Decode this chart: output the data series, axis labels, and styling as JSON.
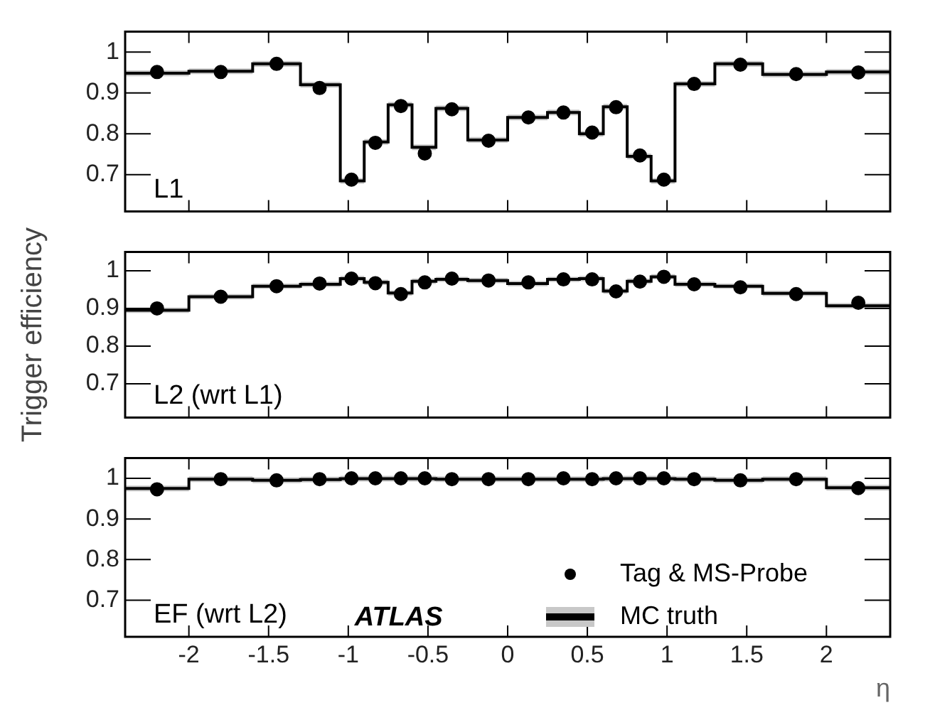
{
  "chart_data": [
    {
      "type": "step",
      "annotations": [
        "L1"
      ],
      "xlim": [
        -2.4,
        2.4
      ],
      "xticks": [
        -2,
        -1.5,
        -1,
        -0.5,
        0,
        0.5,
        1,
        1.5,
        2
      ],
      "ylim": [
        0.61,
        1.05
      ],
      "yticks": [
        0.7,
        0.8,
        0.9,
        1
      ],
      "tick_labels": "y",
      "grid": false,
      "legend": false,
      "series": [
        {
          "type": "scatter",
          "color": "#000000",
          "marker": "circle",
          "x": [
            -2.2,
            -1.8,
            -1.45,
            -1.18,
            -0.98,
            -0.83,
            -0.67,
            -0.52,
            -0.35,
            -0.12,
            0.13,
            0.35,
            0.53,
            0.68,
            0.83,
            0.98,
            1.17,
            1.46,
            1.81,
            2.2
          ],
          "values": [
            0.951,
            0.951,
            0.971,
            0.912,
            0.688,
            0.778,
            0.868,
            0.752,
            0.86,
            0.783,
            0.84,
            0.852,
            0.803,
            0.865,
            0.747,
            0.688,
            0.922,
            0.969,
            0.946,
            0.95
          ]
        },
        {
          "type": "step",
          "color": "#000000",
          "x": [
            -2.4,
            -2.0,
            -1.6,
            -1.3,
            -1.05,
            -0.9,
            -0.75,
            -0.6,
            -0.45,
            -0.25,
            0,
            0.25,
            0.45,
            0.6,
            0.75,
            0.9,
            1.05,
            1.3,
            1.6,
            2.0,
            2.4
          ],
          "values": [
            0.948,
            0.953,
            0.971,
            0.92,
            0.685,
            0.78,
            0.871,
            0.767,
            0.862,
            0.785,
            0.84,
            0.852,
            0.8,
            0.866,
            0.745,
            0.685,
            0.922,
            0.971,
            0.945,
            0.951,
            0.951
          ],
          "lower": [
            0.941,
            0.946,
            0.964,
            0.913,
            0.678,
            0.773,
            0.864,
            0.76,
            0.855,
            0.778,
            0.833,
            0.845,
            0.793,
            0.859,
            0.738,
            0.678,
            0.915,
            0.964,
            0.938,
            0.944,
            0.944
          ],
          "upper": [
            0.955,
            0.96,
            0.978,
            0.927,
            0.692,
            0.787,
            0.878,
            0.774,
            0.869,
            0.792,
            0.847,
            0.859,
            0.807,
            0.873,
            0.752,
            0.692,
            0.929,
            0.978,
            0.952,
            0.958,
            0.958
          ]
        }
      ]
    },
    {
      "type": "step",
      "ylabel": "Trigger efficiency",
      "annotations": [
        "L2 (wrt L1)"
      ],
      "xlim": [
        -2.4,
        2.4
      ],
      "xticks": [
        -2,
        -1.5,
        -1,
        -0.5,
        0,
        0.5,
        1,
        1.5,
        2
      ],
      "ylim": [
        0.61,
        1.05
      ],
      "yticks": [
        0.7,
        0.8,
        0.9,
        1
      ],
      "tick_labels": "y",
      "grid": false,
      "legend": false,
      "series": [
        {
          "type": "scatter",
          "color": "#000000",
          "marker": "circle",
          "x": [
            -2.2,
            -1.8,
            -1.45,
            -1.18,
            -0.98,
            -0.83,
            -0.67,
            -0.52,
            -0.35,
            -0.12,
            0.13,
            0.35,
            0.53,
            0.68,
            0.83,
            0.98,
            1.17,
            1.46,
            1.81,
            2.2
          ],
          "values": [
            0.9,
            0.931,
            0.959,
            0.966,
            0.979,
            0.967,
            0.938,
            0.969,
            0.979,
            0.974,
            0.969,
            0.977,
            0.977,
            0.945,
            0.971,
            0.984,
            0.964,
            0.956,
            0.938,
            0.915
          ]
        },
        {
          "type": "step",
          "color": "#000000",
          "x": [
            -2.4,
            -2.0,
            -1.6,
            -1.3,
            -1.05,
            -0.9,
            -0.75,
            -0.6,
            -0.45,
            -0.25,
            0,
            0.25,
            0.45,
            0.6,
            0.75,
            0.9,
            1.05,
            1.3,
            1.6,
            2.0,
            2.4
          ],
          "values": [
            0.895,
            0.931,
            0.959,
            0.964,
            0.979,
            0.969,
            0.941,
            0.972,
            0.977,
            0.974,
            0.966,
            0.977,
            0.979,
            0.946,
            0.972,
            0.984,
            0.964,
            0.959,
            0.94,
            0.907,
            0.907
          ],
          "lower": [
            0.888,
            0.924,
            0.952,
            0.957,
            0.972,
            0.962,
            0.934,
            0.965,
            0.97,
            0.967,
            0.959,
            0.97,
            0.972,
            0.939,
            0.965,
            0.977,
            0.957,
            0.952,
            0.933,
            0.9,
            0.9
          ],
          "upper": [
            0.902,
            0.938,
            0.966,
            0.971,
            0.986,
            0.976,
            0.948,
            0.979,
            0.984,
            0.981,
            0.973,
            0.984,
            0.986,
            0.953,
            0.979,
            0.991,
            0.971,
            0.966,
            0.947,
            0.914,
            0.914
          ]
        }
      ]
    },
    {
      "type": "step",
      "xlabel": "η",
      "annotations": [
        "EF (wrt L2)",
        "ATLAS"
      ],
      "xlim": [
        -2.4,
        2.4
      ],
      "xticks": [
        -2,
        -1.5,
        -1,
        -0.5,
        0,
        0.5,
        1,
        1.5,
        2
      ],
      "ylim": [
        0.61,
        1.05
      ],
      "yticks": [
        0.7,
        0.8,
        0.9,
        1
      ],
      "grid": false,
      "legend": "bottom right",
      "series": [
        {
          "type": "scatter",
          "name": "Tag & MS-Probe",
          "color": "#000000",
          "marker": "circle",
          "x": [
            -2.2,
            -1.8,
            -1.45,
            -1.18,
            -0.98,
            -0.83,
            -0.67,
            -0.52,
            -0.35,
            -0.12,
            0.13,
            0.35,
            0.53,
            0.68,
            0.83,
            0.98,
            1.17,
            1.46,
            1.81,
            2.2
          ],
          "values": [
            0.973,
            0.998,
            0.995,
            0.998,
            1.0,
            1.0,
            1.0,
            1.0,
            0.998,
            0.998,
            0.998,
            1.0,
            0.998,
            1.0,
            1.0,
            1.0,
            0.998,
            0.995,
            0.998,
            0.976
          ]
        },
        {
          "type": "step",
          "name": "MC truth",
          "color": "#000000",
          "x": [
            -2.4,
            -2.0,
            -1.6,
            -1.3,
            -1.05,
            -0.9,
            -0.75,
            -0.6,
            -0.45,
            -0.25,
            0,
            0.25,
            0.45,
            0.6,
            0.75,
            0.9,
            1.05,
            1.3,
            1.6,
            2.0,
            2.4
          ],
          "values": [
            0.975,
            0.998,
            0.995,
            0.997,
            0.999,
            0.999,
            0.999,
            0.999,
            0.998,
            0.998,
            0.998,
            0.998,
            0.998,
            0.999,
            0.999,
            0.999,
            0.998,
            0.995,
            0.998,
            0.977,
            0.977
          ],
          "lower": [
            0.968,
            0.991,
            0.988,
            0.99,
            0.992,
            0.992,
            0.992,
            0.992,
            0.991,
            0.991,
            0.991,
            0.991,
            0.991,
            0.992,
            0.992,
            0.992,
            0.991,
            0.988,
            0.991,
            0.97,
            0.97
          ],
          "upper": [
            0.982,
            1.005,
            1.002,
            1.004,
            1.006,
            1.006,
            1.006,
            1.006,
            1.005,
            1.005,
            1.005,
            1.005,
            1.005,
            1.006,
            1.006,
            1.006,
            1.005,
            1.002,
            1.005,
            0.984,
            0.984
          ]
        }
      ]
    }
  ]
}
